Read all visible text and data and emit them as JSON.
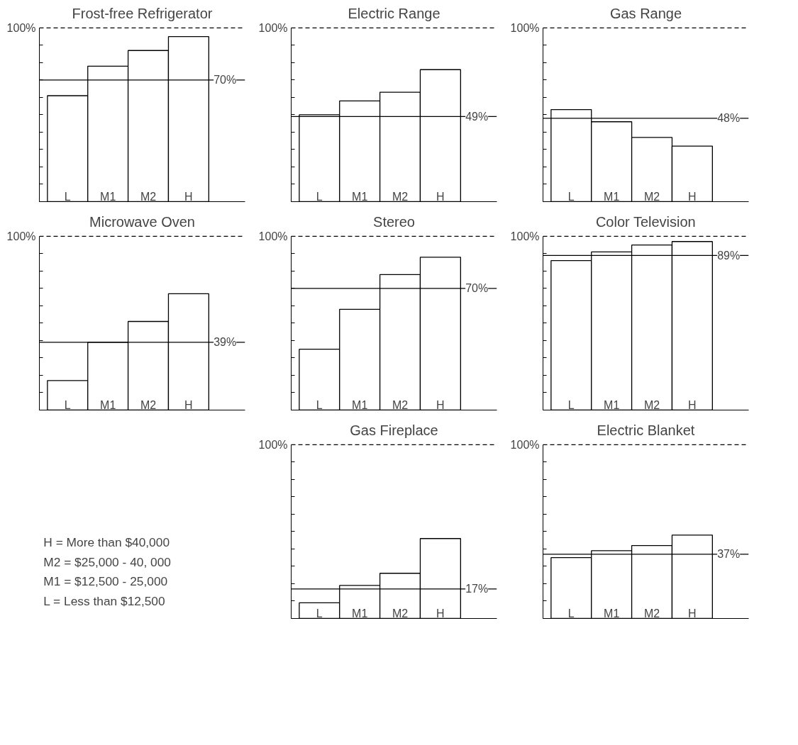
{
  "chart_data": [
    {
      "type": "bar",
      "title": "Frost-free Refrigerator",
      "categories": [
        "L",
        "M1",
        "M2",
        "H"
      ],
      "values": [
        61,
        78,
        87,
        95
      ],
      "color": "#ffffff",
      "ylim": [
        0,
        100
      ],
      "yticks": [
        {
          "value": 0,
          "label": null
        },
        {
          "value": 10,
          "label": null
        },
        {
          "value": 20,
          "label": null
        },
        {
          "value": 30,
          "label": null
        },
        {
          "value": 40,
          "label": null
        },
        {
          "value": 50,
          "label": null
        },
        {
          "value": 60,
          "label": null
        },
        {
          "value": 70,
          "label": null
        },
        {
          "value": 80,
          "label": null
        },
        {
          "value": 90,
          "label": null
        },
        {
          "value": 100,
          "label": "100%"
        }
      ],
      "grid": false,
      "ref_lines": [
        {
          "axis": "y",
          "value": 70,
          "label": "70%"
        },
        {
          "axis": "y",
          "value": 100,
          "label": null,
          "line_style": "dashed"
        }
      ]
    },
    {
      "type": "bar",
      "title": "Electric Range",
      "categories": [
        "L",
        "M1",
        "M2",
        "H"
      ],
      "values": [
        50,
        58,
        63,
        76
      ],
      "color": "#ffffff",
      "ylim": [
        0,
        100
      ],
      "yticks": [
        {
          "value": 0,
          "label": null
        },
        {
          "value": 10,
          "label": null
        },
        {
          "value": 20,
          "label": null
        },
        {
          "value": 30,
          "label": null
        },
        {
          "value": 40,
          "label": null
        },
        {
          "value": 50,
          "label": null
        },
        {
          "value": 60,
          "label": null
        },
        {
          "value": 70,
          "label": null
        },
        {
          "value": 80,
          "label": null
        },
        {
          "value": 90,
          "label": null
        },
        {
          "value": 100,
          "label": "100%"
        }
      ],
      "grid": false,
      "ref_lines": [
        {
          "axis": "y",
          "value": 49,
          "label": "49%"
        },
        {
          "axis": "y",
          "value": 100,
          "label": null,
          "line_style": "dashed"
        }
      ]
    },
    {
      "type": "bar",
      "title": "Gas Range",
      "categories": [
        "L",
        "M1",
        "M2",
        "H"
      ],
      "values": [
        53,
        46,
        37,
        32
      ],
      "color": "#ffffff",
      "ylim": [
        0,
        100
      ],
      "yticks": [
        {
          "value": 0,
          "label": null
        },
        {
          "value": 10,
          "label": null
        },
        {
          "value": 20,
          "label": null
        },
        {
          "value": 30,
          "label": null
        },
        {
          "value": 40,
          "label": null
        },
        {
          "value": 50,
          "label": null
        },
        {
          "value": 60,
          "label": null
        },
        {
          "value": 70,
          "label": null
        },
        {
          "value": 80,
          "label": null
        },
        {
          "value": 90,
          "label": null
        },
        {
          "value": 100,
          "label": "100%"
        }
      ],
      "grid": false,
      "ref_lines": [
        {
          "axis": "y",
          "value": 48,
          "label": "48%"
        },
        {
          "axis": "y",
          "value": 100,
          "label": null,
          "line_style": "dashed"
        }
      ]
    },
    {
      "type": "bar",
      "title": "Microwave Oven",
      "categories": [
        "L",
        "M1",
        "M2",
        "H"
      ],
      "values": [
        17,
        39,
        51,
        67
      ],
      "color": "#ffffff",
      "ylim": [
        0,
        100
      ],
      "yticks": [
        {
          "value": 0,
          "label": null
        },
        {
          "value": 10,
          "label": null
        },
        {
          "value": 20,
          "label": null
        },
        {
          "value": 30,
          "label": null
        },
        {
          "value": 40,
          "label": null
        },
        {
          "value": 50,
          "label": null
        },
        {
          "value": 60,
          "label": null
        },
        {
          "value": 70,
          "label": null
        },
        {
          "value": 80,
          "label": null
        },
        {
          "value": 90,
          "label": null
        },
        {
          "value": 100,
          "label": "100%"
        }
      ],
      "grid": false,
      "ref_lines": [
        {
          "axis": "y",
          "value": 39,
          "label": "39%"
        },
        {
          "axis": "y",
          "value": 100,
          "label": null,
          "line_style": "dashed"
        }
      ]
    },
    {
      "type": "bar",
      "title": "Stereo",
      "categories": [
        "L",
        "M1",
        "M2",
        "H"
      ],
      "values": [
        35,
        58,
        78,
        88
      ],
      "color": "#ffffff",
      "ylim": [
        0,
        100
      ],
      "yticks": [
        {
          "value": 0,
          "label": null
        },
        {
          "value": 10,
          "label": null
        },
        {
          "value": 20,
          "label": null
        },
        {
          "value": 30,
          "label": null
        },
        {
          "value": 40,
          "label": null
        },
        {
          "value": 50,
          "label": null
        },
        {
          "value": 60,
          "label": null
        },
        {
          "value": 70,
          "label": null
        },
        {
          "value": 80,
          "label": null
        },
        {
          "value": 90,
          "label": null
        },
        {
          "value": 100,
          "label": "100%"
        }
      ],
      "grid": false,
      "ref_lines": [
        {
          "axis": "y",
          "value": 70,
          "label": "70%"
        },
        {
          "axis": "y",
          "value": 100,
          "label": null,
          "line_style": "dashed"
        }
      ]
    },
    {
      "type": "bar",
      "title": "Color Television",
      "categories": [
        "L",
        "M1",
        "M2",
        "H"
      ],
      "values": [
        86,
        91,
        95,
        97
      ],
      "color": "#ffffff",
      "ylim": [
        0,
        100
      ],
      "yticks": [
        {
          "value": 0,
          "label": null
        },
        {
          "value": 10,
          "label": null
        },
        {
          "value": 20,
          "label": null
        },
        {
          "value": 30,
          "label": null
        },
        {
          "value": 40,
          "label": null
        },
        {
          "value": 50,
          "label": null
        },
        {
          "value": 60,
          "label": null
        },
        {
          "value": 70,
          "label": null
        },
        {
          "value": 80,
          "label": null
        },
        {
          "value": 90,
          "label": null
        },
        {
          "value": 100,
          "label": "100%"
        }
      ],
      "grid": false,
      "ref_lines": [
        {
          "axis": "y",
          "value": 89,
          "label": "89%"
        },
        {
          "axis": "y",
          "value": 100,
          "label": null,
          "line_style": "dashed"
        }
      ]
    },
    {
      "type": "other",
      "annotations": [
        "H  =  More than  $40,000",
        "M2 =  $25,000  -   40, 000",
        "M1 =  $12,500  -  25,000",
        "L   =   Less than  $12,500"
      ]
    },
    {
      "type": "bar",
      "title": "Gas Fireplace",
      "categories": [
        "L",
        "M1",
        "M2",
        "H"
      ],
      "values": [
        9,
        19,
        26,
        46
      ],
      "color": "#ffffff",
      "ylim": [
        0,
        100
      ],
      "yticks": [
        {
          "value": 0,
          "label": null
        },
        {
          "value": 10,
          "label": null
        },
        {
          "value": 20,
          "label": null
        },
        {
          "value": 30,
          "label": null
        },
        {
          "value": 40,
          "label": null
        },
        {
          "value": 50,
          "label": null
        },
        {
          "value": 60,
          "label": null
        },
        {
          "value": 70,
          "label": null
        },
        {
          "value": 80,
          "label": null
        },
        {
          "value": 90,
          "label": null
        },
        {
          "value": 100,
          "label": "100%"
        }
      ],
      "grid": false,
      "ref_lines": [
        {
          "axis": "y",
          "value": 17,
          "label": "17%"
        },
        {
          "axis": "y",
          "value": 100,
          "label": null,
          "line_style": "dashed"
        }
      ]
    },
    {
      "type": "bar",
      "title": "Electric Blanket",
      "categories": [
        "L",
        "M1",
        "M2",
        "H"
      ],
      "values": [
        35,
        39,
        42,
        48
      ],
      "color": "#ffffff",
      "ylim": [
        0,
        100
      ],
      "yticks": [
        {
          "value": 0,
          "label": null
        },
        {
          "value": 10,
          "label": null
        },
        {
          "value": 20,
          "label": null
        },
        {
          "value": 30,
          "label": null
        },
        {
          "value": 40,
          "label": null
        },
        {
          "value": 50,
          "label": null
        },
        {
          "value": 60,
          "label": null
        },
        {
          "value": 70,
          "label": null
        },
        {
          "value": 80,
          "label": null
        },
        {
          "value": 90,
          "label": null
        },
        {
          "value": 100,
          "label": "100%"
        }
      ],
      "grid": false,
      "ref_lines": [
        {
          "axis": "y",
          "value": 37,
          "label": "37%"
        },
        {
          "axis": "y",
          "value": 100,
          "label": null,
          "line_style": "dashed"
        }
      ]
    }
  ]
}
